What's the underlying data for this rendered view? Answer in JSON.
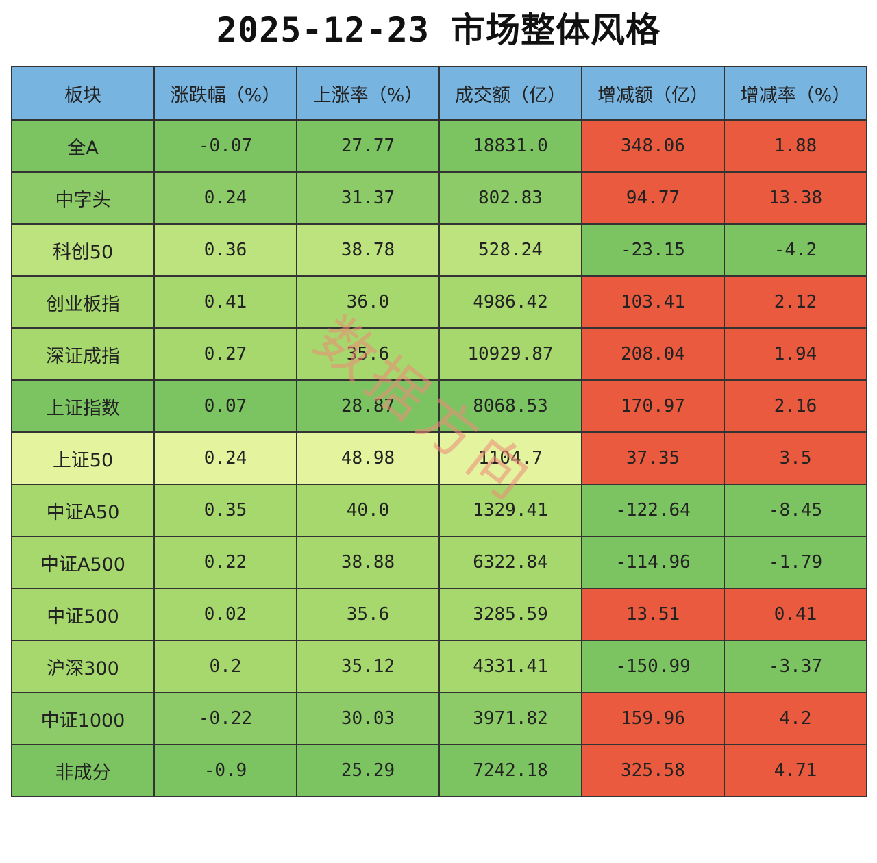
{
  "title": "2025-12-23 市场整体风格",
  "watermark": "数据方向",
  "colors": {
    "header": "#78b4e0",
    "red": "#ea5a3e",
    "green_dark": "#7cc462",
    "green_mid": "#8dcb68",
    "green_light": "#a6d86e",
    "green_lighter": "#bde37e",
    "yellow_green": "#e3f39e"
  },
  "chart_data": {
    "type": "table",
    "title": "2025-12-23 市场整体风格",
    "columns": [
      "板块",
      "涨跌幅（%）",
      "上涨率（%）",
      "成交额（亿）",
      "增减额（亿）",
      "增减率（%）"
    ],
    "rows": [
      [
        "全A",
        "-0.07",
        "27.77",
        "18831.0",
        "348.06",
        "1.88"
      ],
      [
        "中字头",
        "0.24",
        "31.37",
        "802.83",
        "94.77",
        "13.38"
      ],
      [
        "科创50",
        "0.36",
        "38.78",
        "528.24",
        "-23.15",
        "-4.2"
      ],
      [
        "创业板指",
        "0.41",
        "36.0",
        "4986.42",
        "103.41",
        "2.12"
      ],
      [
        "深证成指",
        "0.27",
        "35.6",
        "10929.87",
        "208.04",
        "1.94"
      ],
      [
        "上证指数",
        "0.07",
        "28.87",
        "8068.53",
        "170.97",
        "2.16"
      ],
      [
        "上证50",
        "0.24",
        "48.98",
        "1104.7",
        "37.35",
        "3.5"
      ],
      [
        "中证A50",
        "0.35",
        "40.0",
        "1329.41",
        "-122.64",
        "-8.45"
      ],
      [
        "中证A500",
        "0.22",
        "38.88",
        "6322.84",
        "-114.96",
        "-1.79"
      ],
      [
        "中证500",
        "0.02",
        "35.6",
        "3285.59",
        "13.51",
        "0.41"
      ],
      [
        "沪深300",
        "0.2",
        "35.12",
        "4331.41",
        "-150.99",
        "-3.37"
      ],
      [
        "中证1000",
        "-0.22",
        "30.03",
        "3971.82",
        "159.96",
        "4.2"
      ],
      [
        "非成分",
        "-0.9",
        "25.29",
        "7242.18",
        "325.58",
        "4.71"
      ]
    ],
    "row_colors": [
      "green_dark",
      "green_mid",
      "green_lighter",
      "green_light",
      "green_light",
      "green_dark",
      "yellow_green",
      "green_light",
      "green_light",
      "green_light",
      "green_light",
      "green_mid",
      "green_dark"
    ]
  }
}
